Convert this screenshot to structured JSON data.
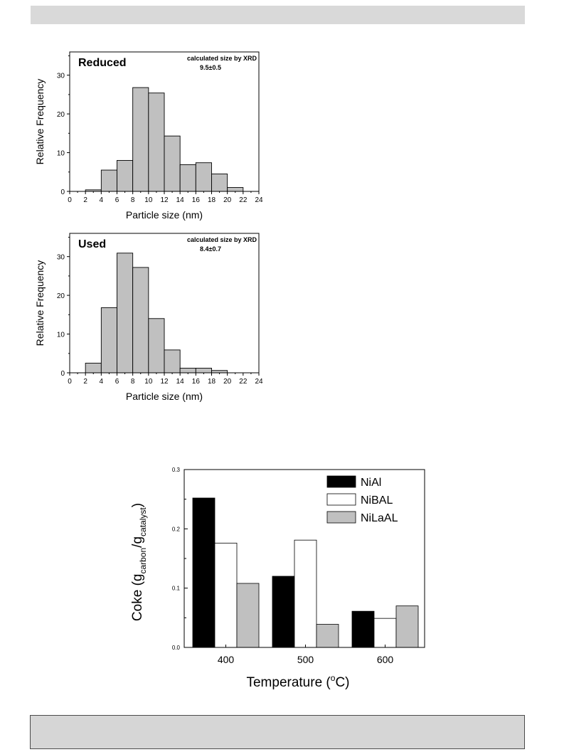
{
  "chart_data": [
    {
      "type": "bar",
      "panel_label": "Reduced",
      "annotation_line1": "calculated size by XRD",
      "annotation_line2": "9.5±0.5",
      "xlabel": "Particle size (nm)",
      "ylabel": "Relative Frequency",
      "xlim": [
        0,
        24
      ],
      "ylim": [
        0,
        36
      ],
      "xticks": [
        0,
        2,
        4,
        6,
        8,
        10,
        12,
        14,
        16,
        18,
        20,
        22,
        24
      ],
      "yticks": [
        0,
        10,
        20,
        30
      ],
      "bins": [
        {
          "x0": 2,
          "x1": 4,
          "value": 0.4
        },
        {
          "x0": 4,
          "x1": 6,
          "value": 5.5
        },
        {
          "x0": 6,
          "x1": 8,
          "value": 8.0
        },
        {
          "x0": 8,
          "x1": 10,
          "value": 26.8
        },
        {
          "x0": 10,
          "x1": 12,
          "value": 25.4
        },
        {
          "x0": 12,
          "x1": 14,
          "value": 14.3
        },
        {
          "x0": 14,
          "x1": 16,
          "value": 6.9
        },
        {
          "x0": 16,
          "x1": 18,
          "value": 7.4
        },
        {
          "x0": 18,
          "x1": 20,
          "value": 4.5
        },
        {
          "x0": 20,
          "x1": 22,
          "value": 1.0
        }
      ],
      "bar_color": "#c0c0c0"
    },
    {
      "type": "bar",
      "panel_label": "Used",
      "annotation_line1": "calculated size by XRD",
      "annotation_line2": "8.4±0.7",
      "xlabel": "Particle size (nm)",
      "ylabel": "Relative Frequency",
      "xlim": [
        0,
        24
      ],
      "ylim": [
        0,
        36
      ],
      "xticks": [
        0,
        2,
        4,
        6,
        8,
        10,
        12,
        14,
        16,
        18,
        20,
        22,
        24
      ],
      "yticks": [
        0,
        10,
        20,
        30
      ],
      "bins": [
        {
          "x0": 2,
          "x1": 4,
          "value": 2.5
        },
        {
          "x0": 4,
          "x1": 6,
          "value": 16.8
        },
        {
          "x0": 6,
          "x1": 8,
          "value": 30.9
        },
        {
          "x0": 8,
          "x1": 10,
          "value": 27.2
        },
        {
          "x0": 10,
          "x1": 12,
          "value": 14.0
        },
        {
          "x0": 12,
          "x1": 14,
          "value": 5.9
        },
        {
          "x0": 14,
          "x1": 16,
          "value": 1.2
        },
        {
          "x0": 16,
          "x1": 18,
          "value": 1.2
        },
        {
          "x0": 18,
          "x1": 20,
          "value": 0.6
        }
      ],
      "bar_color": "#c0c0c0"
    },
    {
      "type": "bar",
      "xlabel_main": "Temperature (",
      "xlabel_sup": "o",
      "xlabel_end": "C)",
      "ylabel_main": "Coke (g",
      "ylabel_sub1": "carbon",
      "ylabel_mid": "/g",
      "ylabel_sub2": "catalyst",
      "ylabel_end": ")",
      "categories": [
        "400",
        "500",
        "600"
      ],
      "ylim": [
        0,
        0.3
      ],
      "yticks": [
        "0.0",
        "0.1",
        "0.2",
        "0.3"
      ],
      "legend_position": "top-right",
      "series": [
        {
          "name": "NiAl",
          "color": "#000000",
          "values": [
            0.252,
            0.12,
            0.061
          ]
        },
        {
          "name": "NiBAL",
          "color": "#ffffff",
          "values": [
            0.176,
            0.181,
            0.049
          ]
        },
        {
          "name": "NiLaAL",
          "color": "#c0c0c0",
          "values": [
            0.108,
            0.039,
            0.07
          ]
        }
      ]
    }
  ]
}
